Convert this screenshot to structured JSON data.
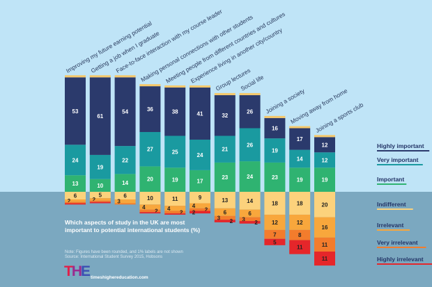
{
  "chart_data": {
    "type": "bar",
    "stacked": true,
    "title": "Which aspects of study in the UK are most important to potential international students (%)",
    "note": "Note: Figures have been rounded, and 1% labels are not shown",
    "source": "Source: International Student Survey 2015, Hobsons",
    "categories": [
      "Improving my future earning potential",
      "Getting a job when I graduate",
      "Face-to-face interaction with my course leader",
      "Making personal connections with other students",
      "Meeting people from different countries and cultures",
      "Experience living in another city/country",
      "Group lectures",
      "Social life",
      "Joining a society",
      "Moving away from home",
      "Joining a sports club"
    ],
    "series": [
      {
        "name": "Highly important",
        "color": "#2b3a6c",
        "values": [
          53,
          61,
          54,
          36,
          38,
          41,
          32,
          26,
          16,
          17,
          12
        ]
      },
      {
        "name": "Very important",
        "color": "#1a9aa0",
        "values": [
          24,
          19,
          22,
          27,
          25,
          24,
          21,
          26,
          19,
          14,
          12
        ]
      },
      {
        "name": "Important",
        "color": "#2fb371",
        "values": [
          13,
          10,
          14,
          20,
          19,
          17,
          23,
          24,
          23,
          19,
          19
        ]
      },
      {
        "name": "Indifferent",
        "color": "#fcd27c",
        "values": [
          6,
          5,
          6,
          10,
          11,
          9,
          13,
          14,
          18,
          18,
          20
        ]
      },
      {
        "name": "Irrelevant",
        "color": "#f8a73c",
        "values": [
          2,
          2,
          3,
          4,
          4,
          4,
          6,
          6,
          12,
          12,
          16
        ]
      },
      {
        "name": "Very irrelevant",
        "color": "#f37c2c",
        "values": [
          1,
          1,
          1,
          2,
          2,
          2,
          3,
          3,
          7,
          8,
          11
        ]
      },
      {
        "name": "Highly irrelevant",
        "color": "#e5262a",
        "values": [
          1,
          1,
          0,
          1,
          1,
          2,
          2,
          2,
          5,
          11,
          11
        ]
      }
    ],
    "legend": "right"
  },
  "footer": {
    "logo": "THE",
    "url": "timeshighereducation.com"
  }
}
